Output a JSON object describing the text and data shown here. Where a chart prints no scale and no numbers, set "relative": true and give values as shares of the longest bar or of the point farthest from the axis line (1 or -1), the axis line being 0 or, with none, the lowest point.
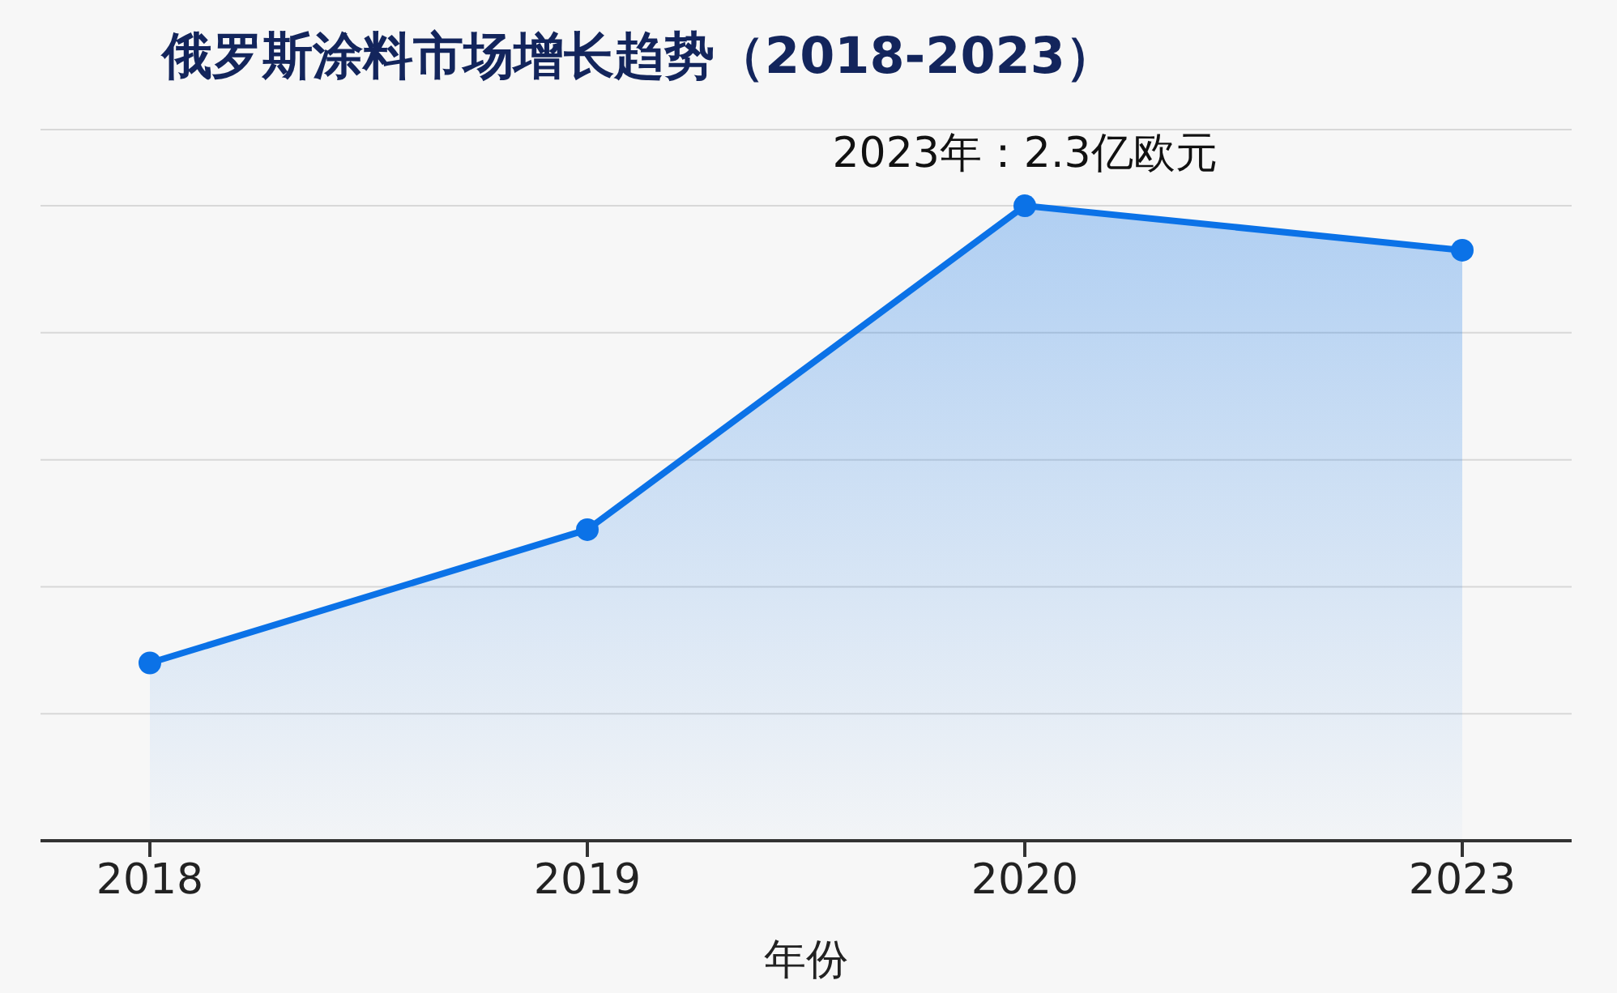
{
  "chart_data": {
    "type": "area",
    "title": "俄罗斯涂料市场增长趋势（2018-2023）",
    "xlabel": "年份",
    "categories": [
      "2018",
      "2019",
      "2020",
      "2023"
    ],
    "relative": true,
    "series": [
      {
        "color": "#0b72e7",
        "values": [
          0.28,
          0.49,
          1,
          0.93
        ]
      }
    ],
    "annotations": [
      {
        "text": "2023年：2.3亿欧元",
        "x": "2020",
        "y": 1
      }
    ],
    "marker": "circle",
    "grid": "y",
    "legend": false
  }
}
